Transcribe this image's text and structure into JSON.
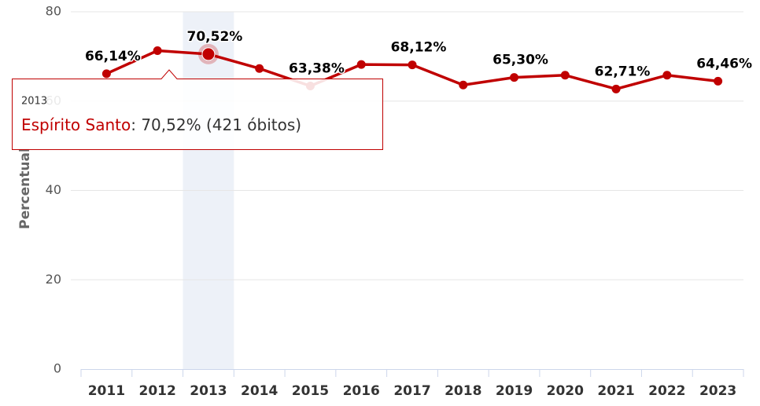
{
  "chart_data": {
    "type": "line",
    "y_axis_label": "Percentual",
    "categories": [
      "2011",
      "2012",
      "2013",
      "2014",
      "2015",
      "2016",
      "2017",
      "2018",
      "2019",
      "2020",
      "2021",
      "2022",
      "2023"
    ],
    "series": [
      {
        "name": "Espírito Santo",
        "color": "#c00000",
        "values": [
          66.14,
          71.3,
          70.52,
          67.3,
          63.38,
          68.2,
          68.12,
          63.6,
          65.3,
          65.8,
          62.71,
          65.8,
          64.46
        ],
        "value_labels": [
          "66,14%",
          null,
          "70,52%",
          null,
          "63,38%",
          null,
          "68,12%",
          null,
          "65,30%",
          null,
          "62,71%",
          null,
          "64,46%"
        ]
      }
    ],
    "ylim": [
      0,
      80
    ],
    "yticks": [
      0,
      20,
      40,
      60,
      80
    ],
    "grid": true,
    "highlighted_index": 2,
    "tooltip": {
      "header": "2013",
      "text": ": 70,52% (421 óbitos)"
    }
  }
}
